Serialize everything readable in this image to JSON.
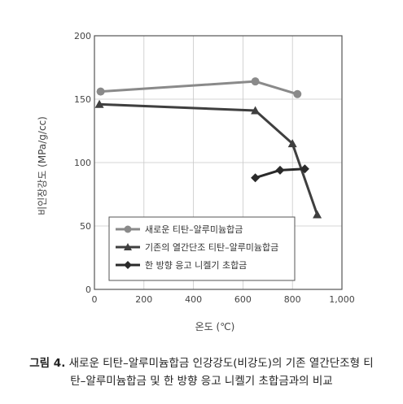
{
  "chart_data": {
    "type": "line",
    "title": "",
    "xlabel": "온도 (℃)",
    "ylabel": "비인장강도 (MPa/g/cc)",
    "xlim": [
      0,
      1000
    ],
    "ylim": [
      0,
      200
    ],
    "x_ticks": [
      0,
      200,
      400,
      600,
      800,
      1000
    ],
    "x_tick_labels": [
      "0",
      "200",
      "400",
      "600",
      "800",
      "1,000"
    ],
    "y_ticks": [
      0,
      50,
      100,
      150,
      200
    ],
    "y_tick_labels": [
      "0",
      "50",
      "100",
      "150",
      "200"
    ],
    "grid": true,
    "legend_placement": "bottom-left",
    "series": [
      {
        "name": "새로운 티탄–알루미늄합금",
        "marker": "circle",
        "color": "#8a8a8a",
        "x": [
          25,
          650,
          820
        ],
        "y": [
          156,
          164,
          154
        ]
      },
      {
        "name": "기존의 열간단조 티탄–알루미늄합금",
        "marker": "triangle",
        "color": "#3f3f3f",
        "x": [
          20,
          650,
          800,
          900
        ],
        "y": [
          146,
          141,
          115,
          59
        ]
      },
      {
        "name": "한 방향 응고 니켈기 초합금",
        "marker": "diamond",
        "color": "#2a2a2a",
        "x": [
          650,
          750,
          850
        ],
        "y": [
          88,
          94,
          95
        ]
      }
    ]
  },
  "caption": {
    "label": "그림 4.",
    "line1": "새로운 티탄–알루미늄합금 인강강도(비강도)의 기존 열간단조형 티",
    "line2": "탄–알루미늄합금 및 한 방향 응고 니켈기 초합금과의 비교"
  }
}
